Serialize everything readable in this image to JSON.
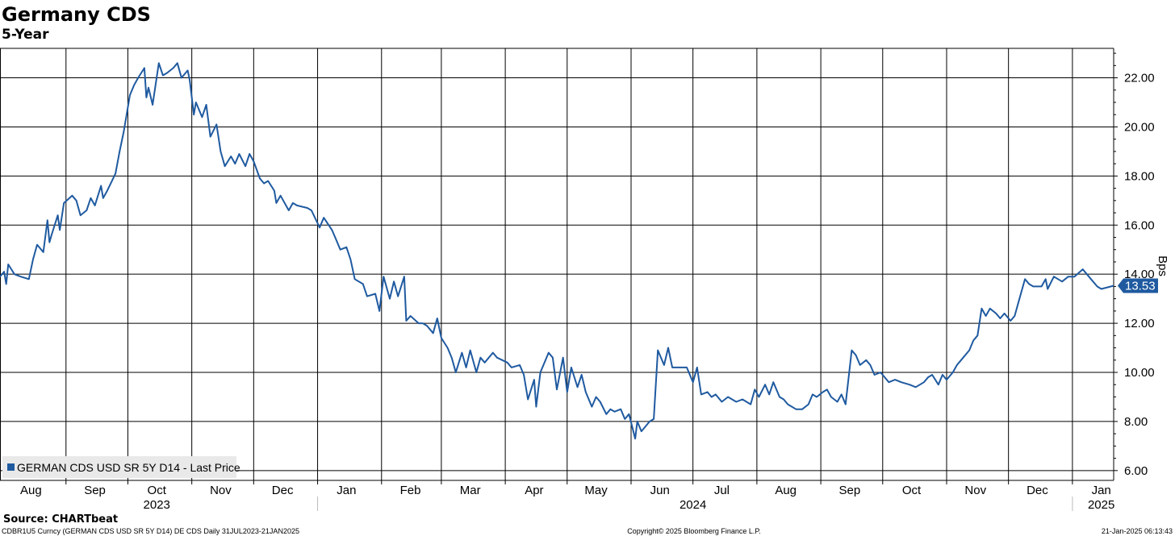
{
  "chart_data": {
    "type": "line",
    "title": "Germany CDS",
    "subtitle": "5-Year",
    "ylabel": "Bps",
    "ylim": [
      5.6,
      23.2
    ],
    "xlim": [
      "2023-07-31",
      "2025-01-21"
    ],
    "grid": true,
    "y_ticks": [
      "6.00",
      "8.00",
      "10.00",
      "12.00",
      "14.00",
      "16.00",
      "18.00",
      "20.00",
      "22.00"
    ],
    "month_ticks": [
      {
        "label": "Aug",
        "date": "2023-08-15"
      },
      {
        "label": "Sep",
        "date": "2023-09-15"
      },
      {
        "label": "Oct",
        "date": "2023-10-15"
      },
      {
        "label": "Nov",
        "date": "2023-11-15"
      },
      {
        "label": "Dec",
        "date": "2023-12-15"
      },
      {
        "label": "Jan",
        "date": "2024-01-15"
      },
      {
        "label": "Feb",
        "date": "2024-02-15"
      },
      {
        "label": "Mar",
        "date": "2024-03-15"
      },
      {
        "label": "Apr",
        "date": "2024-04-15"
      },
      {
        "label": "May",
        "date": "2024-05-15"
      },
      {
        "label": "Jun",
        "date": "2024-06-15"
      },
      {
        "label": "Jul",
        "date": "2024-07-15"
      },
      {
        "label": "Aug",
        "date": "2024-08-15"
      },
      {
        "label": "Sep",
        "date": "2024-09-15"
      },
      {
        "label": "Oct",
        "date": "2024-10-15"
      },
      {
        "label": "Nov",
        "date": "2024-11-15"
      },
      {
        "label": "Dec",
        "date": "2024-12-15"
      },
      {
        "label": "Jan",
        "date": "2025-01-15"
      }
    ],
    "year_labels": [
      {
        "label": "2023",
        "date": "2023-10-15"
      },
      {
        "label": "2024",
        "date": "2024-07-01"
      },
      {
        "label": "2025",
        "date": "2025-01-15"
      }
    ],
    "legend": {
      "label": "GERMAN CDS USD SR 5Y D14 - Last Price",
      "position": "bottom-left"
    },
    "last_value_label": "13.53",
    "series": [
      {
        "name": "GERMAN CDS USD SR 5Y D14 - Last Price",
        "color": "#1f5aa0",
        "points": [
          [
            "2023-07-31",
            13.9
          ],
          [
            "2023-08-02",
            14.1
          ],
          [
            "2023-08-03",
            13.6
          ],
          [
            "2023-08-04",
            14.4
          ],
          [
            "2023-08-07",
            14.0
          ],
          [
            "2023-08-10",
            13.9
          ],
          [
            "2023-08-14",
            13.8
          ],
          [
            "2023-08-16",
            14.6
          ],
          [
            "2023-08-18",
            15.2
          ],
          [
            "2023-08-21",
            14.9
          ],
          [
            "2023-08-23",
            16.2
          ],
          [
            "2023-08-24",
            15.3
          ],
          [
            "2023-08-25",
            15.6
          ],
          [
            "2023-08-28",
            16.4
          ],
          [
            "2023-08-29",
            15.8
          ],
          [
            "2023-08-31",
            16.9
          ],
          [
            "2023-09-04",
            17.2
          ],
          [
            "2023-09-06",
            17.0
          ],
          [
            "2023-09-08",
            16.4
          ],
          [
            "2023-09-11",
            16.6
          ],
          [
            "2023-09-13",
            17.1
          ],
          [
            "2023-09-15",
            16.8
          ],
          [
            "2023-09-18",
            17.6
          ],
          [
            "2023-09-19",
            17.1
          ],
          [
            "2023-09-21",
            17.4
          ],
          [
            "2023-09-25",
            18.1
          ],
          [
            "2023-09-27",
            19.0
          ],
          [
            "2023-09-29",
            19.8
          ],
          [
            "2023-10-02",
            21.3
          ],
          [
            "2023-10-04",
            21.7
          ],
          [
            "2023-10-06",
            22.0
          ],
          [
            "2023-10-09",
            22.4
          ],
          [
            "2023-10-10",
            21.2
          ],
          [
            "2023-10-11",
            21.6
          ],
          [
            "2023-10-13",
            20.9
          ],
          [
            "2023-10-16",
            22.6
          ],
          [
            "2023-10-18",
            22.1
          ],
          [
            "2023-10-20",
            22.2
          ],
          [
            "2023-10-23",
            22.4
          ],
          [
            "2023-10-25",
            22.6
          ],
          [
            "2023-10-27",
            22.0
          ],
          [
            "2023-10-30",
            22.3
          ],
          [
            "2023-10-31",
            21.9
          ],
          [
            "2023-11-02",
            20.5
          ],
          [
            "2023-11-03",
            21.0
          ],
          [
            "2023-11-06",
            20.4
          ],
          [
            "2023-11-08",
            20.9
          ],
          [
            "2023-11-10",
            19.6
          ],
          [
            "2023-11-13",
            20.1
          ],
          [
            "2023-11-15",
            19.0
          ],
          [
            "2023-11-17",
            18.4
          ],
          [
            "2023-11-20",
            18.8
          ],
          [
            "2023-11-22",
            18.5
          ],
          [
            "2023-11-24",
            18.9
          ],
          [
            "2023-11-27",
            18.4
          ],
          [
            "2023-11-29",
            18.9
          ],
          [
            "2023-12-01",
            18.6
          ],
          [
            "2023-12-04",
            17.9
          ],
          [
            "2023-12-06",
            17.7
          ],
          [
            "2023-12-08",
            17.8
          ],
          [
            "2023-12-11",
            17.4
          ],
          [
            "2023-12-12",
            16.9
          ],
          [
            "2023-12-14",
            17.2
          ],
          [
            "2023-12-18",
            16.6
          ],
          [
            "2023-12-20",
            16.9
          ],
          [
            "2023-12-22",
            16.8
          ],
          [
            "2023-12-27",
            16.7
          ],
          [
            "2023-12-29",
            16.6
          ],
          [
            "2024-01-02",
            15.9
          ],
          [
            "2024-01-04",
            16.3
          ],
          [
            "2024-01-08",
            15.8
          ],
          [
            "2024-01-10",
            15.4
          ],
          [
            "2024-01-12",
            15.0
          ],
          [
            "2024-01-15",
            15.1
          ],
          [
            "2024-01-17",
            14.6
          ],
          [
            "2024-01-19",
            13.8
          ],
          [
            "2024-01-23",
            13.6
          ],
          [
            "2024-01-25",
            13.1
          ],
          [
            "2024-01-29",
            13.2
          ],
          [
            "2024-01-31",
            12.5
          ],
          [
            "2024-02-02",
            13.9
          ],
          [
            "2024-02-05",
            13.0
          ],
          [
            "2024-02-07",
            13.7
          ],
          [
            "2024-02-09",
            13.1
          ],
          [
            "2024-02-12",
            13.9
          ],
          [
            "2024-02-13",
            12.1
          ],
          [
            "2024-02-15",
            12.3
          ],
          [
            "2024-02-19",
            12.0
          ],
          [
            "2024-02-21",
            12.0
          ],
          [
            "2024-02-23",
            11.9
          ],
          [
            "2024-02-26",
            11.6
          ],
          [
            "2024-02-28",
            12.2
          ],
          [
            "2024-03-01",
            11.4
          ],
          [
            "2024-03-04",
            11.0
          ],
          [
            "2024-03-06",
            10.6
          ],
          [
            "2024-03-08",
            10.0
          ],
          [
            "2024-03-11",
            10.8
          ],
          [
            "2024-03-13",
            10.2
          ],
          [
            "2024-03-15",
            10.9
          ],
          [
            "2024-03-18",
            10.0
          ],
          [
            "2024-03-20",
            10.6
          ],
          [
            "2024-03-22",
            10.4
          ],
          [
            "2024-03-26",
            10.8
          ],
          [
            "2024-03-28",
            10.6
          ],
          [
            "2024-04-02",
            10.4
          ],
          [
            "2024-04-04",
            10.2
          ],
          [
            "2024-04-08",
            10.3
          ],
          [
            "2024-04-10",
            9.9
          ],
          [
            "2024-04-12",
            8.9
          ],
          [
            "2024-04-15",
            9.7
          ],
          [
            "2024-04-16",
            8.6
          ],
          [
            "2024-04-18",
            10.0
          ],
          [
            "2024-04-22",
            10.8
          ],
          [
            "2024-04-24",
            10.6
          ],
          [
            "2024-04-26",
            9.3
          ],
          [
            "2024-04-29",
            10.6
          ],
          [
            "2024-05-01",
            9.2
          ],
          [
            "2024-05-03",
            10.2
          ],
          [
            "2024-05-06",
            9.4
          ],
          [
            "2024-05-08",
            9.9
          ],
          [
            "2024-05-10",
            9.2
          ],
          [
            "2024-05-13",
            8.6
          ],
          [
            "2024-05-15",
            9.0
          ],
          [
            "2024-05-17",
            8.8
          ],
          [
            "2024-05-20",
            8.3
          ],
          [
            "2024-05-22",
            8.5
          ],
          [
            "2024-05-24",
            8.4
          ],
          [
            "2024-05-27",
            8.5
          ],
          [
            "2024-05-29",
            8.1
          ],
          [
            "2024-05-31",
            8.3
          ],
          [
            "2024-06-03",
            7.3
          ],
          [
            "2024-06-04",
            8.0
          ],
          [
            "2024-06-06",
            7.6
          ],
          [
            "2024-06-10",
            8.0
          ],
          [
            "2024-06-12",
            8.1
          ],
          [
            "2024-06-14",
            10.9
          ],
          [
            "2024-06-17",
            10.3
          ],
          [
            "2024-06-19",
            11.0
          ],
          [
            "2024-06-21",
            10.2
          ],
          [
            "2024-06-25",
            10.2
          ],
          [
            "2024-06-28",
            10.2
          ],
          [
            "2024-07-01",
            9.6
          ],
          [
            "2024-07-03",
            10.2
          ],
          [
            "2024-07-05",
            9.1
          ],
          [
            "2024-07-08",
            9.2
          ],
          [
            "2024-07-10",
            9.0
          ],
          [
            "2024-07-12",
            9.1
          ],
          [
            "2024-07-15",
            8.8
          ],
          [
            "2024-07-18",
            9.0
          ],
          [
            "2024-07-22",
            8.8
          ],
          [
            "2024-07-25",
            8.9
          ],
          [
            "2024-07-29",
            8.7
          ],
          [
            "2024-07-31",
            9.3
          ],
          [
            "2024-08-02",
            9.0
          ],
          [
            "2024-08-05",
            9.5
          ],
          [
            "2024-08-07",
            9.1
          ],
          [
            "2024-08-09",
            9.6
          ],
          [
            "2024-08-12",
            9.0
          ],
          [
            "2024-08-14",
            8.9
          ],
          [
            "2024-08-16",
            8.7
          ],
          [
            "2024-08-20",
            8.5
          ],
          [
            "2024-08-23",
            8.5
          ],
          [
            "2024-08-26",
            8.7
          ],
          [
            "2024-08-28",
            9.1
          ],
          [
            "2024-08-30",
            9.0
          ],
          [
            "2024-09-02",
            9.2
          ],
          [
            "2024-09-04",
            9.3
          ],
          [
            "2024-09-06",
            9.0
          ],
          [
            "2024-09-09",
            8.8
          ],
          [
            "2024-09-11",
            9.1
          ],
          [
            "2024-09-13",
            8.7
          ],
          [
            "2024-09-16",
            10.9
          ],
          [
            "2024-09-18",
            10.7
          ],
          [
            "2024-09-20",
            10.3
          ],
          [
            "2024-09-23",
            10.5
          ],
          [
            "2024-09-25",
            10.3
          ],
          [
            "2024-09-27",
            9.9
          ],
          [
            "2024-09-30",
            10.0
          ],
          [
            "2024-10-02",
            9.8
          ],
          [
            "2024-10-04",
            9.6
          ],
          [
            "2024-10-07",
            9.7
          ],
          [
            "2024-10-10",
            9.6
          ],
          [
            "2024-10-14",
            9.5
          ],
          [
            "2024-10-17",
            9.4
          ],
          [
            "2024-10-21",
            9.6
          ],
          [
            "2024-10-23",
            9.8
          ],
          [
            "2024-10-25",
            9.9
          ],
          [
            "2024-10-28",
            9.5
          ],
          [
            "2024-10-30",
            9.9
          ],
          [
            "2024-11-01",
            9.7
          ],
          [
            "2024-11-04",
            10.0
          ],
          [
            "2024-11-06",
            10.3
          ],
          [
            "2024-11-08",
            10.5
          ],
          [
            "2024-11-12",
            10.9
          ],
          [
            "2024-11-14",
            11.3
          ],
          [
            "2024-11-16",
            11.5
          ],
          [
            "2024-11-18",
            12.6
          ],
          [
            "2024-11-20",
            12.3
          ],
          [
            "2024-11-22",
            12.6
          ],
          [
            "2024-11-25",
            12.4
          ],
          [
            "2024-11-27",
            12.2
          ],
          [
            "2024-11-29",
            12.4
          ],
          [
            "2024-12-02",
            12.1
          ],
          [
            "2024-12-04",
            12.3
          ],
          [
            "2024-12-06",
            12.9
          ],
          [
            "2024-12-09",
            13.8
          ],
          [
            "2024-12-11",
            13.6
          ],
          [
            "2024-12-13",
            13.5
          ],
          [
            "2024-12-17",
            13.5
          ],
          [
            "2024-12-19",
            13.8
          ],
          [
            "2024-12-20",
            13.4
          ],
          [
            "2024-12-23",
            13.9
          ],
          [
            "2024-12-27",
            13.7
          ],
          [
            "2024-12-30",
            13.9
          ],
          [
            "2025-01-02",
            13.9
          ],
          [
            "2025-01-06",
            14.2
          ],
          [
            "2025-01-08",
            14.0
          ],
          [
            "2025-01-10",
            13.8
          ],
          [
            "2025-01-13",
            13.5
          ],
          [
            "2025-01-15",
            13.4
          ],
          [
            "2025-01-21",
            13.53
          ]
        ]
      }
    ]
  },
  "page": {
    "source": "Source: CHARTbeat",
    "footer_left": "CDBR1U5 Curncy (GERMAN CDS USD SR 5Y D14) DE CDS  Daily 31JUL2023-21JAN2025",
    "footer_center": "Copyright© 2025 Bloomberg Finance L.P.",
    "footer_right": "21-Jan-2025 06:13:43"
  },
  "colors": {
    "line": "#1f5aa0",
    "grid": "#000000",
    "label_box": "#1f5aa0"
  }
}
